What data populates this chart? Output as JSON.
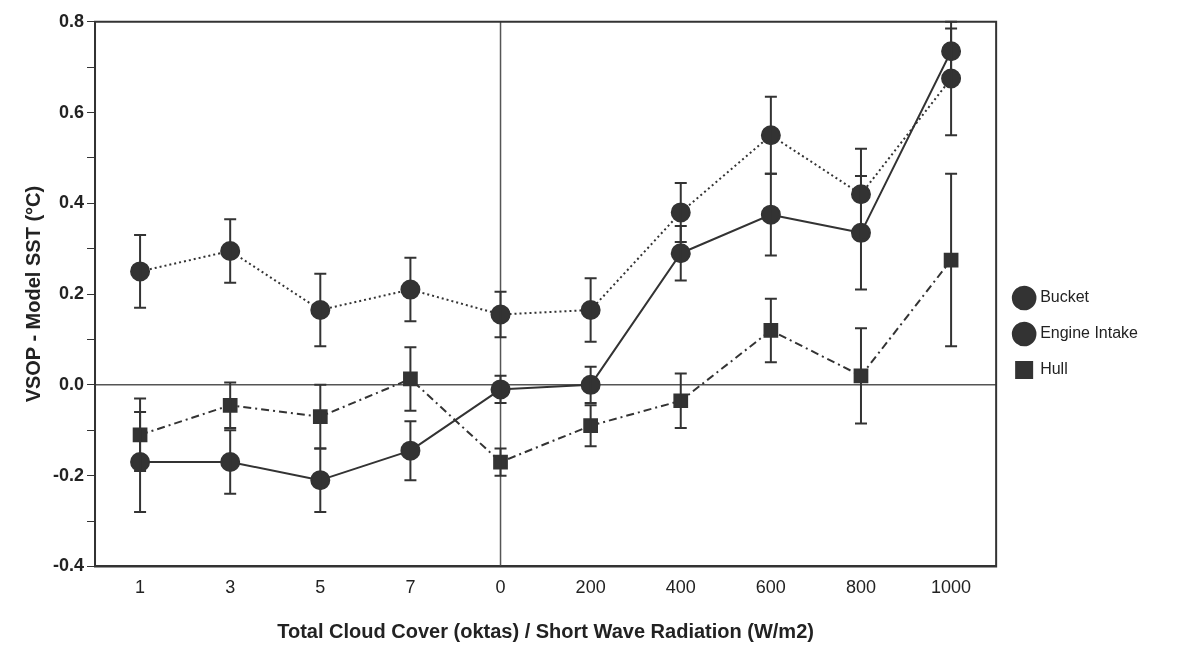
{
  "chart_data": {
    "type": "line",
    "xlabel": "Total Cloud Cover (oktas) / Short Wave Radiation (W/m2)",
    "ylabel": "VSOP - Model SST (°C)",
    "categories": [
      "1",
      "3",
      "5",
      "7",
      "0",
      "200",
      "400",
      "600",
      "800",
      "1000"
    ],
    "ylim": [
      -0.4,
      0.8
    ],
    "yticks": [
      {
        "value": -0.4,
        "label": "-0.4"
      },
      {
        "value": -0.3,
        "label": null
      },
      {
        "value": -0.2,
        "label": "-0.2"
      },
      {
        "value": -0.1,
        "label": null
      },
      {
        "value": 0,
        "label": "0.0"
      },
      {
        "value": 0.1,
        "label": null
      },
      {
        "value": 0.2,
        "label": "0.2"
      },
      {
        "value": 0.3,
        "label": null
      },
      {
        "value": 0.4,
        "label": "0.4"
      },
      {
        "value": 0.5,
        "label": null
      },
      {
        "value": 0.6,
        "label": "0.6"
      },
      {
        "value": 0.7,
        "label": null
      },
      {
        "value": 0.8,
        "label": "0.8"
      }
    ],
    "grid": false,
    "legend": "right",
    "ref_lines": [
      {
        "axis": "y",
        "value": 0,
        "color": "#555555"
      },
      {
        "axis": "x",
        "value": "0",
        "color": "#555555"
      }
    ],
    "series": [
      {
        "name": "Bucket",
        "color": "#333333",
        "marker": "circle",
        "line_style": "solid",
        "values": [
          -0.17,
          -0.17,
          -0.21,
          -0.145,
          -0.01,
          0.0,
          0.29,
          0.375,
          0.335,
          0.735
        ],
        "errors": [
          0.11,
          0.07,
          0.07,
          0.065,
          0.03,
          0.04,
          0.06,
          0.09,
          0.125,
          0.05
        ]
      },
      {
        "name": "Engine Intake",
        "color": "#333333",
        "marker": "circle",
        "line_style": "dotted",
        "values": [
          0.25,
          0.295,
          0.165,
          0.21,
          0.155,
          0.165,
          0.38,
          0.55,
          0.42,
          0.675
        ],
        "errors": [
          0.08,
          0.07,
          0.08,
          0.07,
          0.05,
          0.07,
          0.065,
          0.085,
          0.1,
          0.125
        ]
      },
      {
        "name": "Hull",
        "color": "#333333",
        "marker": "square",
        "line_style": "dashed",
        "values": [
          -0.11,
          -0.045,
          -0.07,
          0.013,
          -0.17,
          -0.09,
          -0.035,
          0.12,
          0.02,
          0.275
        ],
        "errors": [
          0.08,
          0.05,
          0.07,
          0.07,
          0.03,
          0.045,
          0.06,
          0.07,
          0.105,
          0.19
        ]
      }
    ]
  }
}
